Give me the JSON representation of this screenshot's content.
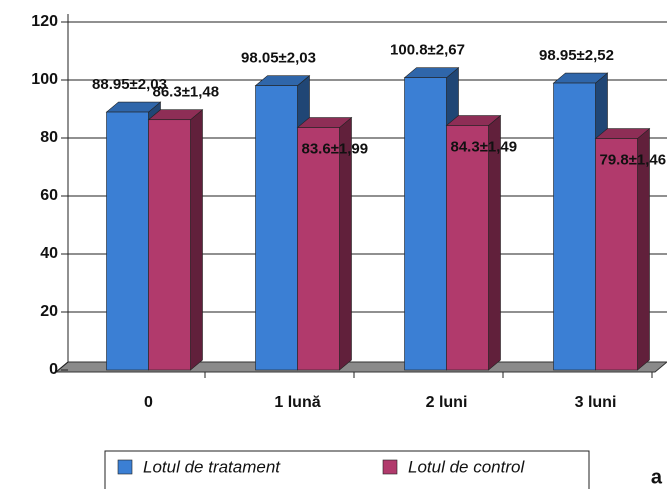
{
  "chart_data": {
    "type": "bar3d",
    "categories": [
      "0",
      "1 lună",
      "2 luni",
      "3 luni"
    ],
    "series": [
      {
        "name": "Lotul de tratament",
        "color": "#3b7fd4",
        "values": [
          88.95,
          98.05,
          100.8,
          98.95
        ],
        "value_labels": [
          "88.95±2,03",
          "98.05±2,03",
          "100.8±2,67",
          "98.95±2,52"
        ]
      },
      {
        "name": "Lotul de control",
        "color": "#b13a6c",
        "values": [
          86.3,
          83.6,
          84.3,
          79.8
        ],
        "value_labels": [
          "86.3±1,48",
          "83.6±1,99",
          "84.3±1,49",
          "79.8±1,46"
        ]
      }
    ],
    "ylim": [
      0,
      120
    ],
    "yticks": [
      0,
      20,
      40,
      60,
      80,
      100,
      120
    ],
    "grid": true,
    "annotation": "a"
  }
}
